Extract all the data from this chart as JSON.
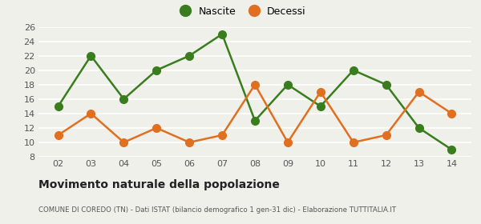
{
  "years": [
    "02",
    "03",
    "04",
    "05",
    "06",
    "07",
    "08",
    "09",
    "10",
    "11",
    "12",
    "13",
    "14"
  ],
  "nascite": [
    15,
    22,
    16,
    20,
    22,
    25,
    13,
    18,
    15,
    20,
    18,
    12,
    9
  ],
  "decessi": [
    11,
    14,
    10,
    12,
    10,
    11,
    18,
    10,
    17,
    10,
    11,
    17,
    14
  ],
  "nascite_color": "#3a7d1e",
  "decessi_color": "#e07020",
  "background_color": "#f0f0eb",
  "grid_color": "#ffffff",
  "ylim": [
    8,
    26
  ],
  "yticks": [
    8,
    10,
    12,
    14,
    16,
    18,
    20,
    22,
    24,
    26
  ],
  "title": "Movimento naturale della popolazione",
  "subtitle": "COMUNE DI COREDO (TN) - Dati ISTAT (bilancio demografico 1 gen-31 dic) - Elaborazione TUTTITALIA.IT",
  "legend_nascite": "Nascite",
  "legend_decessi": "Decessi",
  "marker_size": 7,
  "line_width": 1.8
}
